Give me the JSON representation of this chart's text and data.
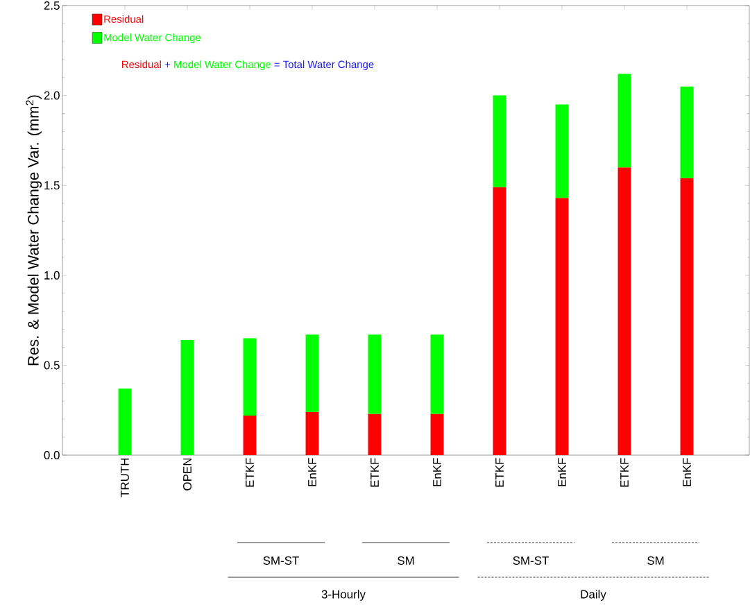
{
  "chart_data": {
    "type": "bar",
    "stacked": true,
    "ylabel": "Res. & Model Water Change Var. (mm$^{2}$)",
    "categories": [
      "TRUTH",
      "OPEN",
      "ETKF",
      "EnKF",
      "ETKF",
      "EnKF",
      "ETKF",
      "EnKF",
      "ETKF",
      "EnKF"
    ],
    "series": [
      {
        "name": "Residual",
        "color": "#ff0000",
        "values": [
          null,
          null,
          0.22,
          0.24,
          0.23,
          0.23,
          1.49,
          1.43,
          1.6,
          1.54
        ]
      },
      {
        "name": "Model Water Change",
        "color": "#00ff00",
        "values": [
          0.37,
          0.64,
          0.43,
          0.43,
          0.44,
          0.44,
          0.51,
          0.52,
          0.52,
          0.51
        ]
      }
    ],
    "ylim": [
      0,
      2.5
    ],
    "yticks": [
      {
        "value": 0,
        "label": "0.0"
      },
      0.5,
      {
        "value": 1,
        "label": "1.0"
      },
      1.5,
      {
        "value": 2,
        "label": "2.0"
      },
      2.5
    ],
    "legend": "top left",
    "grid": false,
    "annotations": [
      "+",
      "=",
      "Total Water Change",
      "SM-ST",
      "SM",
      "3-Hourly",
      "SM-ST",
      "SM",
      "Daily"
    ]
  }
}
